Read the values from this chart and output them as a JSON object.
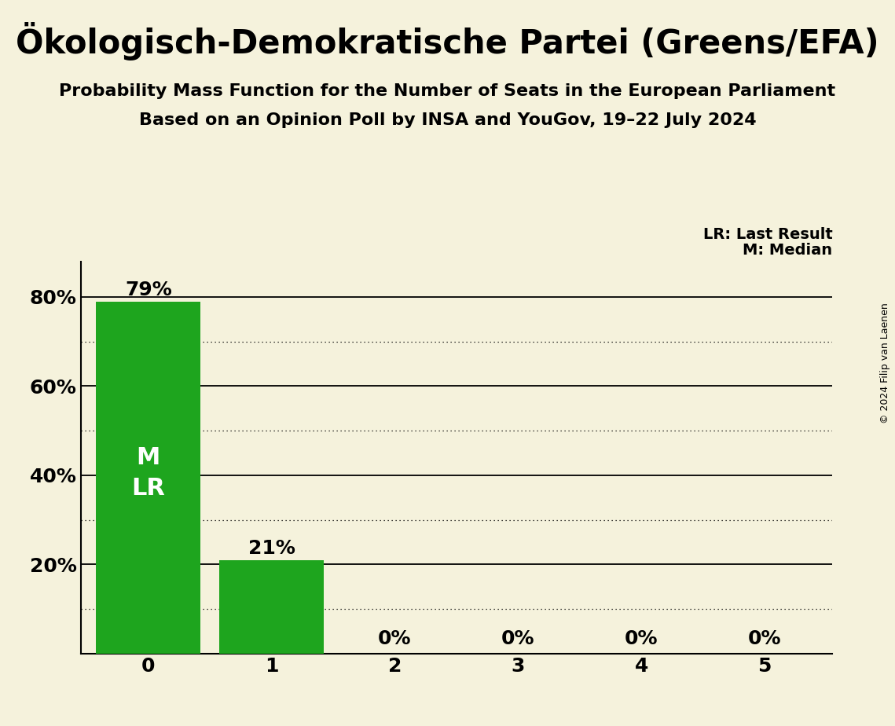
{
  "title": "Ökologisch-Demokratische Partei (Greens/EFA)",
  "subtitle1": "Probability Mass Function for the Number of Seats in the European Parliament",
  "subtitle2": "Based on an Opinion Poll by INSA and YouGov, 19–22 July 2024",
  "copyright": "© 2024 Filip van Laenen",
  "categories": [
    0,
    1,
    2,
    3,
    4,
    5
  ],
  "values": [
    0.79,
    0.21,
    0.0,
    0.0,
    0.0,
    0.0
  ],
  "bar_color": "#1ea51e",
  "background_color": "#f5f2dc",
  "ylim": [
    0,
    0.88
  ],
  "yticks": [
    0.0,
    0.2,
    0.4,
    0.6,
    0.8
  ],
  "ytick_labels": [
    "",
    "20%",
    "40%",
    "60%",
    "80%"
  ],
  "legend_lr": "LR: Last Result",
  "legend_m": "M: Median",
  "bar_labels": [
    "79%",
    "21%",
    "0%",
    "0%",
    "0%",
    "0%"
  ],
  "bar_label_color_inside": "#ffffff",
  "bar_label_color_outside": "#000000",
  "solid_grid_lines": [
    0.2,
    0.4,
    0.6,
    0.8
  ],
  "dotted_grid_lines": [
    0.1,
    0.3,
    0.5,
    0.7
  ],
  "title_fontsize": 30,
  "subtitle_fontsize": 16,
  "axis_tick_fontsize": 18,
  "bar_label_fontsize": 18,
  "legend_fontsize": 14,
  "copyright_fontsize": 9,
  "m_lr_fontsize": 22
}
